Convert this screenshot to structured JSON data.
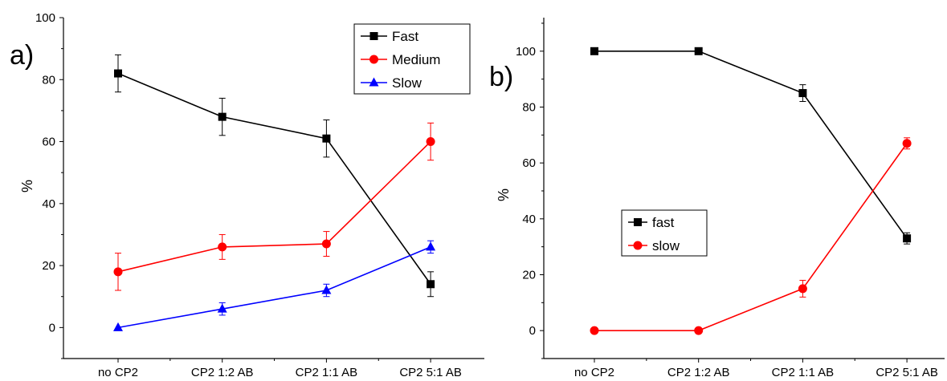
{
  "chart_data": [
    {
      "panel_label": "a)",
      "type": "line",
      "categories": [
        "no CP2",
        "CP2 1:2 AB",
        "CP2 1:1 AB",
        "CP2 5:1 AB"
      ],
      "ylabel": "%",
      "xlabel": "",
      "ylim": [
        -10,
        100
      ],
      "yticks": [
        0,
        20,
        40,
        60,
        80,
        100
      ],
      "legend_position": "top-right",
      "series": [
        {
          "name": "Fast",
          "color": "#000000",
          "marker": "square",
          "values": [
            82,
            68,
            61,
            14
          ],
          "errors": [
            6,
            6,
            6,
            4
          ]
        },
        {
          "name": "Medium",
          "color": "#ff0000",
          "marker": "circle",
          "values": [
            18,
            26,
            27,
            60
          ],
          "errors": [
            6,
            4,
            4,
            6
          ]
        },
        {
          "name": "Slow",
          "color": "#0000ff",
          "marker": "triangle",
          "values": [
            0,
            6,
            12,
            26
          ],
          "errors": [
            0,
            2,
            2,
            2
          ]
        }
      ]
    },
    {
      "panel_label": "b)",
      "type": "line",
      "categories": [
        "no CP2",
        "CP2 1:2 AB",
        "CP2 1:1 AB",
        "CP2 5:1 AB"
      ],
      "ylabel": "%",
      "xlabel": "",
      "ylim": [
        -10,
        112
      ],
      "yticks": [
        0,
        20,
        40,
        60,
        80,
        100
      ],
      "legend_position": "center-left",
      "series": [
        {
          "name": "fast",
          "color": "#000000",
          "marker": "square",
          "values": [
            100,
            100,
            85,
            33
          ],
          "errors": [
            0,
            0,
            3,
            2
          ]
        },
        {
          "name": "slow",
          "color": "#ff0000",
          "marker": "circle",
          "values": [
            0,
            0,
            15,
            67
          ],
          "errors": [
            0,
            0,
            3,
            2
          ]
        }
      ]
    }
  ]
}
